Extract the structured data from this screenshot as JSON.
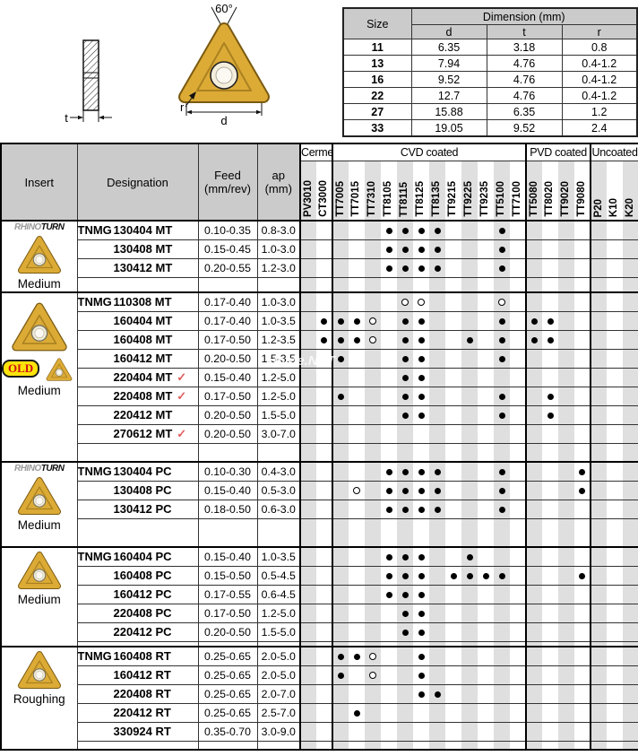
{
  "diagram": {
    "angle_label": "60°",
    "t_label": "t",
    "r_label": "r",
    "d_label": "d"
  },
  "size_table": {
    "col_size": "Size",
    "col_dimension": "Dimension (mm)",
    "cols": [
      "d",
      "t",
      "r"
    ],
    "rows": [
      [
        "11",
        "6.35",
        "3.18",
        "0.8"
      ],
      [
        "13",
        "7.94",
        "4.76",
        "0.4-1.2"
      ],
      [
        "16",
        "9.52",
        "4.76",
        "0.4-1.2"
      ],
      [
        "22",
        "12.7",
        "4.76",
        "0.4-1.2"
      ],
      [
        "27",
        "15.88",
        "6.35",
        "1.2"
      ],
      [
        "33",
        "19.05",
        "9.52",
        "2.4"
      ]
    ]
  },
  "branding": {
    "logo_a": "RHINO",
    "logo_b": "TURN",
    "old": "OLD"
  },
  "watermark": "Home.NET",
  "colors": {
    "insert_gold": "#dcab36",
    "insert_gold_dark": "#7a5a10",
    "old_badge_yellow": "#ffe40c",
    "old_text_red": "#cc1111",
    "check_red": "#e05f5f",
    "header_gray": "#cbcbcb",
    "stripe_gray": "#dfdfdf"
  },
  "main_table": {
    "headers": {
      "insert": "Insert",
      "designation": "Designation",
      "feed_l1": "Feed",
      "feed_l2": "(mm/rev)",
      "ap_l1": "ap",
      "ap_l2": "(mm)"
    },
    "sections": [
      {
        "label": "Cermet",
        "span": 2
      },
      {
        "label": "CVD coated",
        "span": 12
      },
      {
        "label": "PVD coated",
        "span": 4
      },
      {
        "label": "Uncoated",
        "span": 3
      }
    ],
    "grades": [
      "PV3010",
      "CT3000",
      "TT7005",
      "TT7015",
      "TT7310",
      "TT8105",
      "TT8115",
      "TT8125",
      "TT8135",
      "TT9215",
      "TT9225",
      "TT9235",
      "TT5100",
      "TT7100",
      "TT5080",
      "TT8020",
      "TT9020",
      "TT9080",
      "P20",
      "K10",
      "K20"
    ],
    "legend": {
      "filled": "available",
      "open": "limited"
    },
    "groups": [
      {
        "insert": {
          "logo": true,
          "old": false,
          "big": false,
          "label": "Medium"
        },
        "filler": 17,
        "rows": [
          {
            "prefix": "TNMG",
            "name": "130404 MT",
            "feed": "0.10-0.35",
            "ap": "0.8-3.0",
            "filled": [
              5,
              6,
              7,
              8,
              12
            ],
            "open": []
          },
          {
            "prefix": "",
            "name": "130408 MT",
            "feed": "0.15-0.45",
            "ap": "1.0-3.0",
            "filled": [
              5,
              6,
              7,
              8,
              12
            ],
            "open": []
          },
          {
            "prefix": "",
            "name": "130412 MT",
            "feed": "0.20-0.55",
            "ap": "1.2-3.0",
            "filled": [
              5,
              6,
              7,
              8,
              12
            ],
            "open": []
          }
        ]
      },
      {
        "insert": {
          "logo": false,
          "old": true,
          "big": true,
          "label": "Medium"
        },
        "filler": 21,
        "rows": [
          {
            "prefix": "TNMG",
            "name": "110308 MT",
            "feed": "0.17-0.40",
            "ap": "1.0-3.0",
            "filled": [],
            "open": [
              6,
              7,
              12
            ]
          },
          {
            "prefix": "",
            "name": "160404 MT",
            "feed": "0.17-0.40",
            "ap": "1.0-3.5",
            "filled": [
              1,
              2,
              3,
              6,
              7,
              12,
              14,
              15
            ],
            "open": [
              4
            ]
          },
          {
            "prefix": "",
            "name": "160408 MT",
            "feed": "0.17-0.50",
            "ap": "1.2-3.5",
            "filled": [
              1,
              2,
              3,
              6,
              7,
              10,
              12,
              14,
              15
            ],
            "open": [
              4
            ]
          },
          {
            "prefix": "",
            "name": "160412 MT",
            "feed": "0.20-0.50",
            "ap": "1.5-3.5",
            "filled": [
              2,
              6,
              7,
              12
            ],
            "open": []
          },
          {
            "prefix": "",
            "name": "220404 MT",
            "check": true,
            "feed": "0.15-0.40",
            "ap": "1.2-5.0",
            "filled": [
              6,
              7
            ],
            "open": []
          },
          {
            "prefix": "",
            "name": "220408 MT",
            "check": true,
            "feed": "0.17-0.50",
            "ap": "1.2-5.0",
            "filled": [
              2,
              6,
              7,
              12,
              15
            ],
            "open": []
          },
          {
            "prefix": "",
            "name": "220412 MT",
            "feed": "0.20-0.50",
            "ap": "1.5-5.0",
            "filled": [
              6,
              7,
              12,
              15
            ],
            "open": []
          },
          {
            "prefix": "",
            "name": "270612 MT",
            "check": true,
            "feed": "0.20-0.50",
            "ap": "3.0-7.0",
            "filled": [],
            "open": []
          }
        ]
      },
      {
        "insert": {
          "logo": true,
          "old": false,
          "big": false,
          "label": "Medium"
        },
        "filler": 32,
        "rows": [
          {
            "prefix": "TNMG",
            "name": "130404 PC",
            "feed": "0.10-0.30",
            "ap": "0.4-3.0",
            "filled": [
              5,
              6,
              7,
              8,
              12,
              17
            ],
            "open": []
          },
          {
            "prefix": "",
            "name": "130408 PC",
            "feed": "0.15-0.40",
            "ap": "0.5-3.0",
            "filled": [
              5,
              6,
              7,
              8,
              12,
              17
            ],
            "open": [
              3
            ]
          },
          {
            "prefix": "",
            "name": "130412 PC",
            "feed": "0.18-0.50",
            "ap": "0.6-3.0",
            "filled": [
              5,
              6,
              7,
              8,
              12
            ],
            "open": []
          }
        ]
      },
      {
        "insert": {
          "logo": false,
          "old": false,
          "big": false,
          "label": "Medium"
        },
        "filler": 6,
        "rows": [
          {
            "prefix": "TNMG",
            "name": "160404 PC",
            "feed": "0.15-0.40",
            "ap": "1.0-3.5",
            "filled": [
              5,
              6,
              7,
              10
            ],
            "open": []
          },
          {
            "prefix": "",
            "name": "160408 PC",
            "feed": "0.15-0.50",
            "ap": "0.5-4.5",
            "filled": [
              5,
              6,
              7,
              9,
              10,
              11,
              12,
              17
            ],
            "open": []
          },
          {
            "prefix": "",
            "name": "160412 PC",
            "feed": "0.17-0.55",
            "ap": "0.6-4.5",
            "filled": [
              5,
              6,
              7
            ],
            "open": []
          },
          {
            "prefix": "",
            "name": "220408 PC",
            "feed": "0.17-0.50",
            "ap": "1.2-5.0",
            "filled": [
              6,
              7
            ],
            "open": []
          },
          {
            "prefix": "",
            "name": "220412 PC",
            "feed": "0.20-0.50",
            "ap": "1.5-5.0",
            "filled": [
              6,
              7
            ],
            "open": []
          }
        ]
      },
      {
        "insert": {
          "logo": false,
          "old": false,
          "big": false,
          "label": "Roughing"
        },
        "filler": 10,
        "rows": [
          {
            "prefix": "TNMG",
            "name": "160408 RT",
            "feed": "0.25-0.65",
            "ap": "2.0-5.0",
            "filled": [
              2,
              3,
              7
            ],
            "open": [
              4
            ]
          },
          {
            "prefix": "",
            "name": "160412 RT",
            "feed": "0.25-0.65",
            "ap": "2.0-5.0",
            "filled": [
              2,
              7
            ],
            "open": [
              4
            ]
          },
          {
            "prefix": "",
            "name": "220408 RT",
            "feed": "0.25-0.65",
            "ap": "2.0-7.0",
            "filled": [
              7,
              8
            ],
            "open": []
          },
          {
            "prefix": "",
            "name": "220412 RT",
            "feed": "0.25-0.65",
            "ap": "2.5-7.0",
            "filled": [
              3
            ],
            "open": []
          },
          {
            "prefix": "",
            "name": "330924 RT",
            "feed": "0.35-0.70",
            "ap": "3.0-9.0",
            "filled": [],
            "open": []
          }
        ]
      }
    ]
  }
}
